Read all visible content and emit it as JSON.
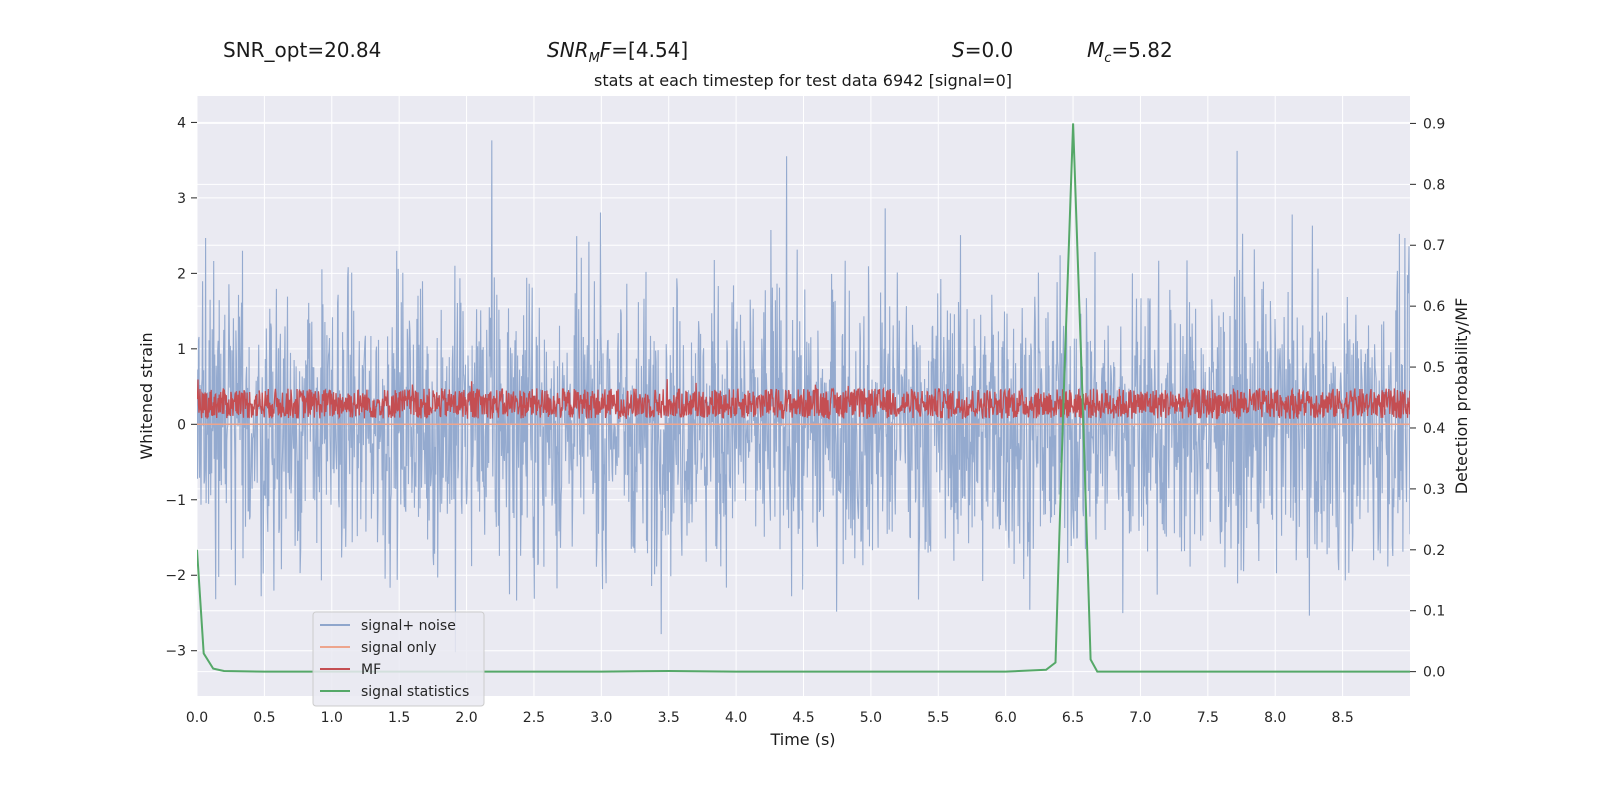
{
  "header": {
    "snr_opt": "SNR_opt=20.84",
    "snr_mf_var": "SNR",
    "snr_mf_sub": "M",
    "snr_mf_var2": "F",
    "snr_mf_value": "=[4.54]",
    "s_var": "S",
    "s_value": "=0.0",
    "mc_var": "M",
    "mc_sub": "c",
    "mc_value": "=5.82"
  },
  "chart_data": {
    "type": "line",
    "title": "stats at each timestep for test data 6942 [signal=0]",
    "xlabel": "Time (s)",
    "ylabel": "Whitened strain",
    "y2label": "Detection probability/MF",
    "xlim": [
      0.0,
      9.0
    ],
    "ylim": [
      -3.6,
      4.35
    ],
    "y2lim": [
      -0.04,
      0.945
    ],
    "xticks": [
      0.0,
      0.5,
      1.0,
      1.5,
      2.0,
      2.5,
      3.0,
      3.5,
      4.0,
      4.5,
      5.0,
      5.5,
      6.0,
      6.5,
      7.0,
      7.5,
      8.0,
      8.5
    ],
    "xtick_labels": [
      "0.0",
      "0.5",
      "1.0",
      "1.5",
      "2.0",
      "2.5",
      "3.0",
      "3.5",
      "4.0",
      "4.5",
      "5.0",
      "5.5",
      "6.0",
      "6.5",
      "7.0",
      "7.5",
      "8.0",
      "8.5"
    ],
    "yticks": [
      -3,
      -2,
      -1,
      0,
      1,
      2,
      3,
      4
    ],
    "ytick_labels": [
      "−3",
      "−2",
      "−1",
      "0",
      "1",
      "2",
      "3",
      "4"
    ],
    "y2ticks": [
      0.0,
      0.1,
      0.2,
      0.3,
      0.4,
      0.5,
      0.6,
      0.7,
      0.8,
      0.9
    ],
    "y2tick_labels": [
      "0.0",
      "0.1",
      "0.2",
      "0.3",
      "0.4",
      "0.5",
      "0.6",
      "0.7",
      "0.8",
      "0.9"
    ],
    "grid": true,
    "legend_position": "lower-left",
    "series": [
      {
        "name": "signal+ noise",
        "color": "#8fa6cc",
        "axis": "left",
        "style": "dense noise, envelope about ±1.5, peaks up to 4.0 and down to −3.3",
        "noise_amplitude": 1.5
      },
      {
        "name": "signal only",
        "color": "#eda48c",
        "axis": "left",
        "style": "flat (no signal)"
      },
      {
        "name": "MF",
        "color": "#c44e52",
        "axis": "right",
        "baseline": 0.44,
        "peak": 0.52
      },
      {
        "name": "signal statistics",
        "color": "#55a868",
        "axis": "right",
        "x": [
          0.0,
          0.05,
          0.12,
          0.2,
          0.5,
          1.0,
          2.0,
          3.0,
          3.5,
          4.0,
          5.0,
          6.0,
          6.3,
          6.37,
          6.43,
          6.5,
          6.57,
          6.63,
          6.68,
          7.0,
          8.0,
          9.0
        ],
        "y": [
          0.2,
          0.03,
          0.005,
          0.001,
          0.0,
          0.0,
          0.0,
          0.0,
          0.001,
          0.0,
          0.0,
          0.0,
          0.003,
          0.015,
          0.45,
          0.9,
          0.45,
          0.02,
          0.0,
          0.0,
          0.0,
          0.0
        ]
      }
    ]
  }
}
